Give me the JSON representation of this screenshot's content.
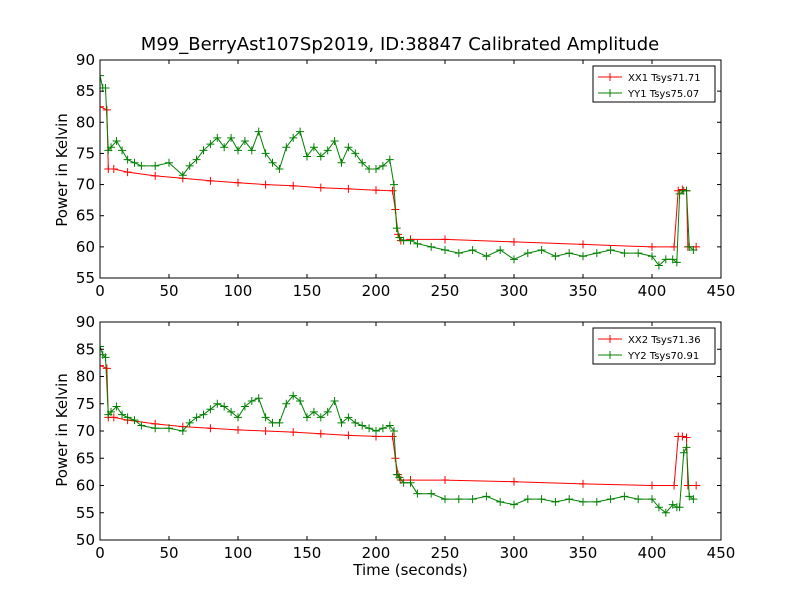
{
  "title": "M99_BerryAst107Sp2019, ID:38847 Calibrated Amplitude",
  "xlabel": "Time (seconds)",
  "colors": {
    "xx": "#ff0000",
    "yy": "#008000",
    "axes": "#000000",
    "background": "#ffffff"
  },
  "chart_data": [
    {
      "type": "line",
      "ylabel": "Power in Kelvin",
      "xlim": [
        0,
        450
      ],
      "ylim": [
        55,
        90
      ],
      "xticks": [
        0,
        50,
        100,
        150,
        200,
        250,
        300,
        350,
        400,
        450
      ],
      "yticks": [
        55,
        60,
        65,
        70,
        75,
        80,
        85,
        90
      ],
      "legend_position": "top-right",
      "marker": "+",
      "series": [
        {
          "name": "XX1 Tsys71.71",
          "color": "#ff0000",
          "x": [
            0,
            5,
            6,
            10,
            20,
            40,
            60,
            80,
            100,
            120,
            140,
            160,
            180,
            200,
            212,
            214,
            216,
            218,
            225,
            250,
            300,
            350,
            400,
            416,
            419,
            422,
            425,
            426,
            432
          ],
          "y": [
            82.5,
            82,
            72.5,
            72.5,
            72,
            71.4,
            71,
            70.6,
            70.3,
            70,
            69.8,
            69.5,
            69.3,
            69.1,
            69,
            66,
            62,
            61,
            61.2,
            61.2,
            60.8,
            60.4,
            60,
            60,
            69,
            69.2,
            69,
            60,
            60
          ]
        },
        {
          "name": "YY1 Tsys75.07",
          "color": "#008000",
          "x": [
            0,
            2,
            4,
            6,
            8,
            12,
            16,
            20,
            25,
            30,
            40,
            50,
            60,
            65,
            70,
            75,
            80,
            85,
            90,
            95,
            100,
            105,
            110,
            115,
            120,
            125,
            130,
            135,
            140,
            145,
            150,
            155,
            160,
            165,
            170,
            175,
            180,
            185,
            190,
            195,
            200,
            205,
            210,
            213,
            215,
            217,
            220,
            225,
            230,
            240,
            250,
            260,
            270,
            280,
            290,
            300,
            310,
            320,
            330,
            340,
            350,
            360,
            370,
            380,
            390,
            400,
            405,
            410,
            415,
            418,
            420,
            423,
            425,
            427,
            430
          ],
          "y": [
            87.5,
            85.5,
            85.5,
            75.5,
            76,
            77,
            75.5,
            74,
            73.5,
            73,
            73,
            73.5,
            71.5,
            73,
            74,
            75.5,
            76.5,
            77.5,
            76,
            77.5,
            75.5,
            77,
            75.5,
            78.5,
            75,
            73.5,
            72.5,
            76,
            77.5,
            78.5,
            74.5,
            76,
            74.5,
            75.5,
            77,
            73.5,
            76,
            75,
            73.5,
            72.5,
            72.5,
            73,
            74,
            70,
            63,
            61.5,
            61,
            61,
            60.5,
            60,
            59.5,
            59,
            59.5,
            58.5,
            59.5,
            58,
            59,
            59.5,
            58.5,
            59,
            58.5,
            59,
            59.5,
            59,
            59,
            58.5,
            57,
            58,
            58,
            57.5,
            68.5,
            69,
            69,
            60,
            59.5
          ]
        }
      ]
    },
    {
      "type": "line",
      "ylabel": "Power in Kelvin",
      "xlim": [
        0,
        450
      ],
      "ylim": [
        50,
        90
      ],
      "xticks": [
        0,
        50,
        100,
        150,
        200,
        250,
        300,
        350,
        400,
        450
      ],
      "yticks": [
        50,
        55,
        60,
        65,
        70,
        75,
        80,
        85,
        90
      ],
      "legend_position": "top-right",
      "marker": "+",
      "series": [
        {
          "name": "XX2 Tsys71.36",
          "color": "#ff0000",
          "x": [
            0,
            5,
            6,
            10,
            20,
            40,
            60,
            80,
            100,
            120,
            140,
            160,
            180,
            200,
            212,
            214,
            216,
            218,
            225,
            250,
            300,
            350,
            400,
            416,
            419,
            422,
            425,
            426,
            432
          ],
          "y": [
            82,
            81.5,
            72.5,
            72.5,
            72,
            71.3,
            70.8,
            70.5,
            70.2,
            70,
            69.8,
            69.5,
            69.2,
            69,
            69,
            65,
            62,
            61,
            61,
            61,
            60.7,
            60.3,
            60,
            60,
            69,
            69,
            68.8,
            60,
            60
          ]
        },
        {
          "name": "YY2 Tsys70.91",
          "color": "#008000",
          "x": [
            0,
            2,
            4,
            6,
            8,
            12,
            16,
            20,
            25,
            30,
            40,
            50,
            60,
            65,
            70,
            75,
            80,
            85,
            90,
            95,
            100,
            105,
            110,
            115,
            120,
            125,
            130,
            135,
            140,
            145,
            150,
            155,
            160,
            165,
            170,
            175,
            180,
            185,
            190,
            195,
            200,
            205,
            210,
            213,
            215,
            217,
            220,
            225,
            230,
            240,
            250,
            260,
            270,
            280,
            290,
            300,
            310,
            320,
            330,
            340,
            350,
            360,
            370,
            380,
            390,
            400,
            405,
            410,
            415,
            418,
            420,
            423,
            425,
            427,
            430
          ],
          "y": [
            85.5,
            84,
            83.5,
            73,
            73.5,
            74.5,
            73,
            72.5,
            72,
            71,
            70.5,
            70.5,
            70,
            71.5,
            72.5,
            73,
            74,
            75,
            74.5,
            73.5,
            72.5,
            74.5,
            75.5,
            76,
            72.5,
            71.5,
            71.5,
            75,
            76.5,
            75.5,
            72.5,
            73.5,
            72.5,
            73.5,
            75.5,
            71.5,
            72.5,
            71.5,
            71,
            70.5,
            70,
            70.5,
            71,
            70,
            62,
            61.5,
            60.5,
            60.5,
            58.5,
            58.5,
            57.5,
            57.5,
            57.5,
            58,
            57,
            56.5,
            57.5,
            57.5,
            57,
            57.5,
            57,
            57,
            57.5,
            58,
            57.5,
            57.5,
            56,
            55,
            56.5,
            56,
            56,
            66,
            67,
            58,
            57.5
          ]
        }
      ]
    }
  ]
}
